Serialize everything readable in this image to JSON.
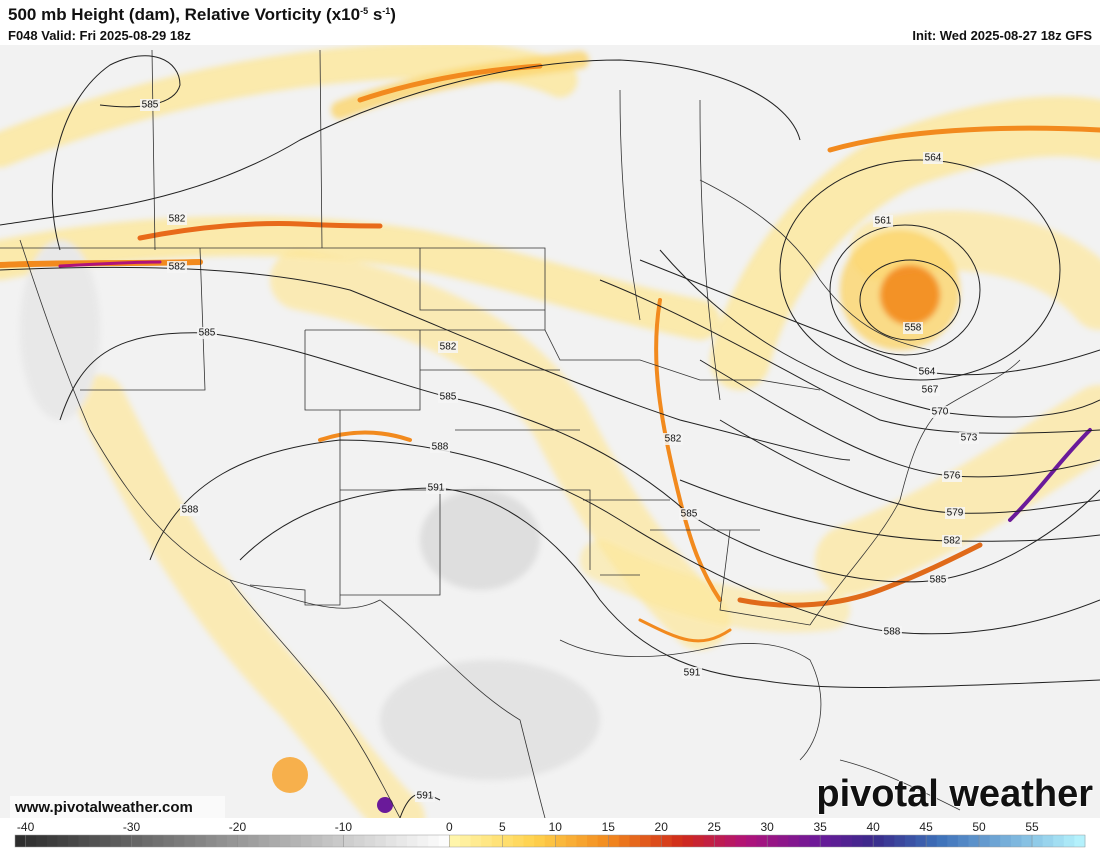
{
  "header": {
    "title": {
      "text": "500 mb Height (dam), Relative Vorticity (x10",
      "exp1": "-5",
      "mid": " s",
      "exp2": "-1",
      "end": ")"
    },
    "valid": "F048 Valid: Fri 2025-08-29 18z",
    "init": "Init: Wed 2025-08-27 18z GFS"
  },
  "map": {
    "contour_labels": [
      "585",
      "582",
      "582",
      "585",
      "582",
      "585",
      "588",
      "591",
      "588",
      "582",
      "585",
      "564",
      "561",
      "558",
      "564",
      "567",
      "570",
      "573",
      "576",
      "579",
      "582",
      "585",
      "588",
      "591",
      "591"
    ],
    "website": "www.pivotalweather.com",
    "logo": "pivotal weather"
  },
  "colorbar": {
    "lim": [
      -41,
      60
    ],
    "ticks": [
      -40,
      -30,
      -20,
      -10,
      0,
      5,
      10,
      15,
      20,
      25,
      30,
      35,
      40,
      45,
      50,
      55
    ],
    "stops": [
      {
        "value": -41,
        "color": "#2b2b2b"
      },
      {
        "value": 0,
        "color": "#ffffff"
      },
      {
        "value": 0.01,
        "color": "#fff7b0"
      },
      {
        "value": 8,
        "color": "#ffd24d"
      },
      {
        "value": 15,
        "color": "#f28a1e"
      },
      {
        "value": 22,
        "color": "#d02a1a"
      },
      {
        "value": 28,
        "color": "#b0127a"
      },
      {
        "value": 35,
        "color": "#6a1a9a"
      },
      {
        "value": 40,
        "color": "#3a2a8a"
      },
      {
        "value": 46,
        "color": "#3c6fb8"
      },
      {
        "value": 60,
        "color": "#b8f6ff"
      }
    ]
  }
}
